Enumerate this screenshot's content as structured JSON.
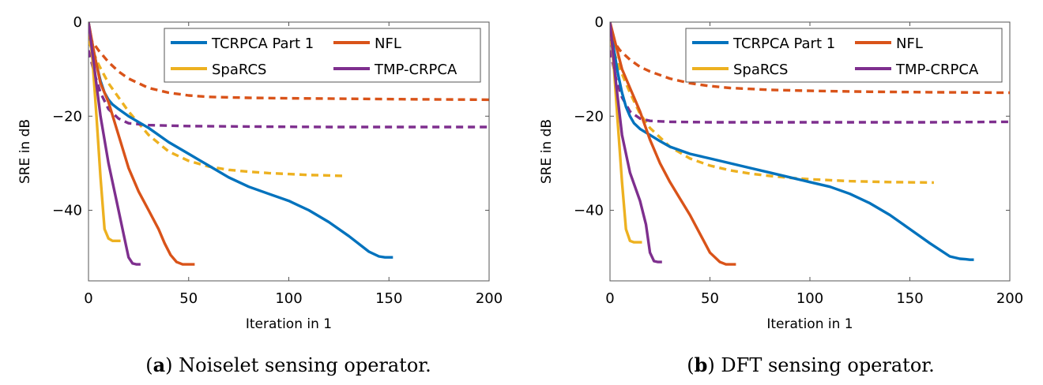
{
  "chart_data": [
    {
      "type": "line",
      "panel_label": "a",
      "caption": "Noiselet sensing operator.",
      "xlabel": "Iteration in 1",
      "ylabel": "SRE in dB",
      "xlim": [
        0,
        200
      ],
      "ylim": [
        -55,
        0
      ],
      "xticks": [
        0,
        50,
        100,
        150,
        200
      ],
      "yticks": [
        0,
        -20,
        -40
      ],
      "xtick_labels": [
        "0",
        "50",
        "100",
        "150",
        "200"
      ],
      "ytick_labels": [
        "0",
        "−20",
        "−40"
      ],
      "grid": false,
      "legend_position": "top-right",
      "legend": [
        "TCRPCA Part 1",
        "NFL",
        "SpaRCS",
        "TMP-CRPCA"
      ],
      "series": [
        {
          "name": "TCRPCA Part 1",
          "color": "#0072BD",
          "style": "solid",
          "x": [
            0,
            2,
            4,
            6,
            8,
            10,
            12,
            15,
            20,
            30,
            40,
            50,
            60,
            70,
            80,
            90,
            100,
            110,
            120,
            130,
            140,
            145,
            148,
            150,
            152
          ],
          "y": [
            0,
            -5,
            -9,
            -12.5,
            -15,
            -16.5,
            -17.5,
            -18.5,
            -20,
            -22.5,
            -25.5,
            -28,
            -30.5,
            -33,
            -35,
            -36.5,
            -38,
            -40,
            -42.5,
            -45.5,
            -48.8,
            -49.8,
            -50,
            -50,
            -50
          ]
        },
        {
          "name": "TCRPCA Part 1 (dashed)",
          "color": "#0072BD",
          "style": "dashed",
          "x": [],
          "y": []
        },
        {
          "name": "NFL",
          "color": "#D95319",
          "style": "solid",
          "x": [
            0,
            3,
            6,
            10,
            15,
            20,
            25,
            30,
            35,
            38,
            41,
            44,
            47,
            50,
            53
          ],
          "y": [
            0,
            -7,
            -13,
            -17,
            -24,
            -31,
            -36,
            -40,
            -44,
            -47,
            -49.5,
            -51,
            -51.5,
            -51.5,
            -51.5
          ]
        },
        {
          "name": "NFL (dashed)",
          "color": "#D95319",
          "style": "dashed",
          "x": [
            0,
            5,
            10,
            15,
            20,
            30,
            40,
            50,
            60,
            80,
            100,
            130,
            160,
            200
          ],
          "y": [
            -3,
            -6,
            -8.5,
            -10.5,
            -12,
            -14,
            -15,
            -15.6,
            -15.9,
            -16.1,
            -16.2,
            -16.3,
            -16.4,
            -16.5
          ]
        },
        {
          "name": "SpaRCS",
          "color": "#EDB120",
          "style": "solid",
          "x": [
            0,
            2,
            4,
            6,
            8,
            10,
            12,
            14,
            16
          ],
          "y": [
            0,
            -8,
            -20,
            -33,
            -44,
            -46,
            -46.5,
            -46.5,
            -46.5
          ]
        },
        {
          "name": "SpaRCS (dashed)",
          "color": "#EDB120",
          "style": "dashed",
          "x": [
            0,
            5,
            10,
            20,
            30,
            40,
            50,
            60,
            70,
            80,
            90,
            100,
            110,
            120,
            127
          ],
          "y": [
            -4,
            -9,
            -13,
            -19,
            -24,
            -27.5,
            -29.5,
            -30.7,
            -31.4,
            -31.8,
            -32.1,
            -32.3,
            -32.5,
            -32.6,
            -32.7
          ]
        },
        {
          "name": "TMP-CRPCA",
          "color": "#7E2F8E",
          "style": "solid",
          "x": [
            0,
            3,
            6,
            10,
            14,
            18,
            20,
            22,
            24,
            26
          ],
          "y": [
            0,
            -10,
            -20,
            -30,
            -38,
            -46,
            -50,
            -51.3,
            -51.5,
            -51.5
          ]
        },
        {
          "name": "TMP-CRPCA (dashed)",
          "color": "#7E2F8E",
          "style": "dashed",
          "x": [
            0,
            3,
            6,
            10,
            15,
            20,
            30,
            50,
            80,
            120,
            160,
            200
          ],
          "y": [
            -6,
            -11,
            -15,
            -18.5,
            -20.5,
            -21.5,
            -21.9,
            -22.1,
            -22.2,
            -22.3,
            -22.3,
            -22.3
          ]
        }
      ]
    },
    {
      "type": "line",
      "panel_label": "b",
      "caption": "DFT sensing operator.",
      "xlabel": "Iteration in 1",
      "ylabel": "SRE in dB",
      "xlim": [
        0,
        200
      ],
      "ylim": [
        -55,
        0
      ],
      "xticks": [
        0,
        50,
        100,
        150,
        200
      ],
      "yticks": [
        0,
        -20,
        -40
      ],
      "xtick_labels": [
        "0",
        "50",
        "100",
        "150",
        "200"
      ],
      "ytick_labels": [
        "0",
        "−20",
        "−40"
      ],
      "grid": false,
      "legend_position": "top-right",
      "legend": [
        "TCRPCA Part 1",
        "NFL",
        "SpaRCS",
        "TMP-CRPCA"
      ],
      "series": [
        {
          "name": "TCRPCA Part 1",
          "color": "#0072BD",
          "style": "solid",
          "x": [
            0,
            2,
            4,
            6,
            8,
            10,
            12,
            15,
            20,
            25,
            30,
            40,
            50,
            60,
            70,
            80,
            90,
            100,
            110,
            120,
            130,
            140,
            150,
            160,
            170,
            175,
            178,
            180,
            182
          ],
          "y": [
            0,
            -6,
            -11,
            -15,
            -18,
            -20,
            -21.5,
            -22.7,
            -24,
            -25.3,
            -26.5,
            -28,
            -29,
            -30,
            -31,
            -32,
            -33,
            -34,
            -35,
            -36.5,
            -38.5,
            -41,
            -44,
            -47,
            -49.8,
            -50.3,
            -50.4,
            -50.5,
            -50.5
          ]
        },
        {
          "name": "NFL",
          "color": "#D95319",
          "style": "solid",
          "x": [
            0,
            3,
            6,
            10,
            15,
            20,
            25,
            30,
            35,
            40,
            45,
            50,
            55,
            58,
            61,
            63
          ],
          "y": [
            0,
            -5,
            -10,
            -14,
            -19,
            -25,
            -30,
            -34,
            -37.5,
            -41,
            -45,
            -49,
            -51,
            -51.5,
            -51.5,
            -51.5
          ]
        },
        {
          "name": "NFL (dashed)",
          "color": "#D95319",
          "style": "dashed",
          "x": [
            0,
            5,
            10,
            15,
            20,
            30,
            40,
            50,
            60,
            80,
            100,
            130,
            160,
            200
          ],
          "y": [
            -3,
            -6,
            -8,
            -9.5,
            -10.5,
            -12,
            -13,
            -13.6,
            -14,
            -14.4,
            -14.6,
            -14.8,
            -14.9,
            -15
          ]
        },
        {
          "name": "SpaRCS",
          "color": "#EDB120",
          "style": "solid",
          "x": [
            0,
            2,
            4,
            6,
            8,
            10,
            12,
            14,
            16
          ],
          "y": [
            0,
            -10,
            -22,
            -34,
            -44,
            -46.5,
            -46.8,
            -46.8,
            -46.8
          ]
        },
        {
          "name": "SpaRCS (dashed)",
          "color": "#EDB120",
          "style": "dashed",
          "x": [
            0,
            5,
            10,
            15,
            20,
            30,
            40,
            50,
            60,
            70,
            80,
            90,
            100,
            120,
            140,
            162
          ],
          "y": [
            -4,
            -10,
            -15,
            -19.5,
            -22.5,
            -26.5,
            -29,
            -30.5,
            -31.5,
            -32.2,
            -32.7,
            -33.1,
            -33.4,
            -33.8,
            -34,
            -34.1
          ]
        },
        {
          "name": "TMP-CRPCA",
          "color": "#7E2F8E",
          "style": "solid",
          "x": [
            0,
            3,
            6,
            10,
            15,
            18,
            20,
            22,
            24,
            26
          ],
          "y": [
            0,
            -13,
            -24,
            -32,
            -38,
            -43,
            -49,
            -50.8,
            -51,
            -51
          ]
        },
        {
          "name": "TMP-CRPCA (dashed)",
          "color": "#7E2F8E",
          "style": "dashed",
          "x": [
            0,
            3,
            6,
            10,
            15,
            20,
            30,
            50,
            80,
            120,
            160,
            200
          ],
          "y": [
            -6,
            -12,
            -16,
            -19,
            -20.5,
            -21,
            -21.2,
            -21.3,
            -21.3,
            -21.3,
            -21.3,
            -21.2
          ]
        }
      ]
    }
  ]
}
